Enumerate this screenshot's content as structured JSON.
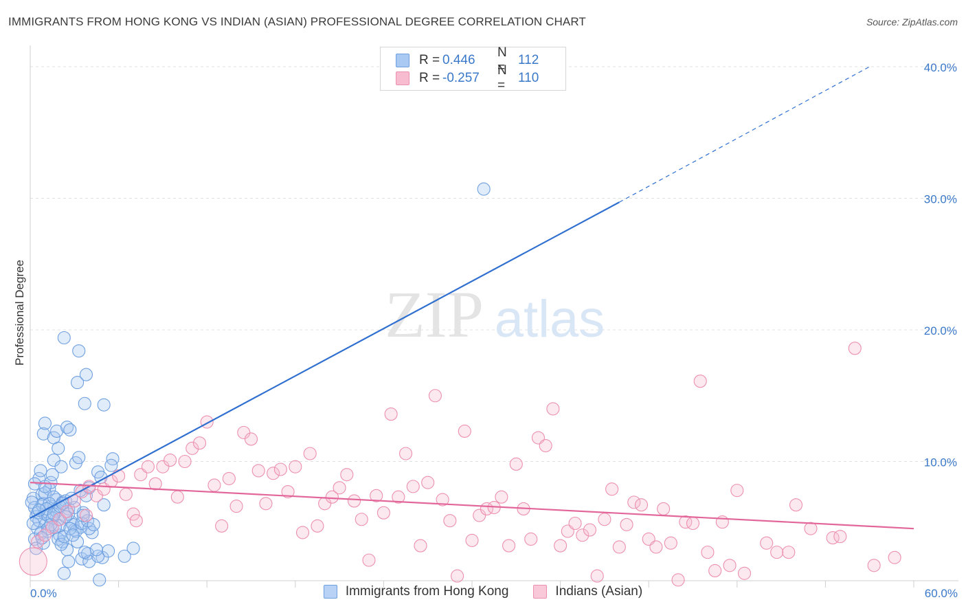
{
  "title": "IMMIGRANTS FROM HONG KONG VS INDIAN (ASIAN) PROFESSIONAL DEGREE CORRELATION CHART",
  "source": "Source: ZipAtlas.com",
  "watermark": {
    "zip": "ZIP",
    "atlas": "atlas"
  },
  "legend_top": [
    {
      "r_label": "R =",
      "r_value": "0.446",
      "n_label": "N =",
      "n_value": "112",
      "color": "#a9c8f2",
      "edge": "#6d9fe0"
    },
    {
      "r_label": "R =",
      "r_value": "-0.257",
      "n_label": "N =",
      "n_value": "110",
      "color": "#f7bcd0",
      "edge": "#ec8fb0"
    }
  ],
  "legend_bottom": [
    {
      "label": "Immigrants from Hong Kong",
      "color": "#b7d2f5",
      "edge": "#6d9fe0"
    },
    {
      "label": "Indians (Asian)",
      "color": "#f9c9d9",
      "edge": "#ec8fb0"
    }
  ],
  "chart_data": {
    "type": "scatter",
    "title": "IMMIGRANTS FROM HONG KONG VS INDIAN (ASIAN) PROFESSIONAL DEGREE CORRELATION CHART",
    "xlabel": "",
    "ylabel": "Professional Degree",
    "xlim": [
      0,
      60
    ],
    "ylim": [
      0,
      40
    ],
    "x_tick_labels": {
      "left": "0.0%",
      "right": "60.0%"
    },
    "y_ticks": [
      10,
      20,
      30,
      40
    ],
    "y_tick_labels": [
      "10.0%",
      "20.0%",
      "30.0%",
      "40.0%"
    ],
    "grid": true,
    "series": [
      {
        "name": "Immigrants from Hong Kong",
        "color": "#6d9fe0",
        "fill": "rgba(170,200,242,0.35)",
        "trend": {
          "x0": 0,
          "y0": 5.7,
          "x1": 40,
          "y1": 29.7,
          "dash_to_x": 57,
          "dash_to_y": 40.0,
          "color": "#2f6fd0"
        },
        "points": [
          [
            0.2,
            7.2
          ],
          [
            0.3,
            6.5
          ],
          [
            0.4,
            5.8
          ],
          [
            0.5,
            4.9
          ],
          [
            0.3,
            4.1
          ],
          [
            0.6,
            8.7
          ],
          [
            0.7,
            9.3
          ],
          [
            0.8,
            7.5
          ],
          [
            0.9,
            6.8
          ],
          [
            1.0,
            6.0
          ],
          [
            1.1,
            5.3
          ],
          [
            1.2,
            4.7
          ],
          [
            1.3,
            7.9
          ],
          [
            1.4,
            8.4
          ],
          [
            1.5,
            9.0
          ],
          [
            1.6,
            10.1
          ],
          [
            1.7,
            6.3
          ],
          [
            1.8,
            7.1
          ],
          [
            1.9,
            5.6
          ],
          [
            2.0,
            4.4
          ],
          [
            0.5,
            6.1
          ],
          [
            0.6,
            5.5
          ],
          [
            0.8,
            6.7
          ],
          [
            1.0,
            7.6
          ],
          [
            1.2,
            5.9
          ],
          [
            1.4,
            6.6
          ],
          [
            1.6,
            7.3
          ],
          [
            1.8,
            6.2
          ],
          [
            2.0,
            5.1
          ],
          [
            2.2,
            6.9
          ],
          [
            2.4,
            7.0
          ],
          [
            2.6,
            6.4
          ],
          [
            2.8,
            5.4
          ],
          [
            3.0,
            4.8
          ],
          [
            3.2,
            3.9
          ],
          [
            3.4,
            5.0
          ],
          [
            3.6,
            6.1
          ],
          [
            3.8,
            7.4
          ],
          [
            4.0,
            8.0
          ],
          [
            4.2,
            4.6
          ],
          [
            0.9,
            12.1
          ],
          [
            1.0,
            12.9
          ],
          [
            1.6,
            11.8
          ],
          [
            1.8,
            12.3
          ],
          [
            1.9,
            11.0
          ],
          [
            2.1,
            9.6
          ],
          [
            2.5,
            12.6
          ],
          [
            2.7,
            12.4
          ],
          [
            3.1,
            9.9
          ],
          [
            3.3,
            10.3
          ],
          [
            2.3,
            19.4
          ],
          [
            3.3,
            18.4
          ],
          [
            3.8,
            16.6
          ],
          [
            3.2,
            16.0
          ],
          [
            3.7,
            14.4
          ],
          [
            5.0,
            14.3
          ],
          [
            5.6,
            10.2
          ],
          [
            4.6,
            9.2
          ],
          [
            5.5,
            9.7
          ],
          [
            4.8,
            8.8
          ],
          [
            2.2,
            3.9
          ],
          [
            2.5,
            3.3
          ],
          [
            2.6,
            2.4
          ],
          [
            2.3,
            1.5
          ],
          [
            3.5,
            2.6
          ],
          [
            3.9,
            3.0
          ],
          [
            4.0,
            2.4
          ],
          [
            4.7,
            1.0
          ],
          [
            4.9,
            2.7
          ],
          [
            4.6,
            2.8
          ],
          [
            5.3,
            3.2
          ],
          [
            6.4,
            2.8
          ],
          [
            7.0,
            3.4
          ],
          [
            3.7,
            3.1
          ],
          [
            4.5,
            3.3
          ],
          [
            2.9,
            5.2
          ],
          [
            3.1,
            4.7
          ],
          [
            3.5,
            5.3
          ],
          [
            4.0,
            4.9
          ],
          [
            5.0,
            6.7
          ],
          [
            1.3,
            6.8
          ],
          [
            1.5,
            5.7
          ],
          [
            1.7,
            5.0
          ],
          [
            1.9,
            4.1
          ],
          [
            2.1,
            3.7
          ],
          [
            2.3,
            4.3
          ],
          [
            2.7,
            4.9
          ],
          [
            2.9,
            4.4
          ],
          [
            3.9,
            5.5
          ],
          [
            4.3,
            5.2
          ],
          [
            0.4,
            3.4
          ],
          [
            0.7,
            4.5
          ],
          [
            0.9,
            3.8
          ],
          [
            1.1,
            6.4
          ],
          [
            2.6,
            6.0
          ],
          [
            3.0,
            6.5
          ],
          [
            3.4,
            7.8
          ],
          [
            0.2,
            5.3
          ],
          [
            0.1,
            6.9
          ],
          [
            0.3,
            8.3
          ],
          [
            1.2,
            4.9
          ],
          [
            1.4,
            5.2
          ],
          [
            2.8,
            7.2
          ],
          [
            2.4,
            5.8
          ],
          [
            1.6,
            6.0
          ],
          [
            0.8,
            4.2
          ],
          [
            0.6,
            6.3
          ],
          [
            3.6,
            5.9
          ],
          [
            2.0,
            6.6
          ],
          [
            1.0,
            8.1
          ],
          [
            30.8,
            30.7
          ],
          [
            2.2,
            6.8
          ]
        ]
      },
      {
        "name": "Indians (Asian)",
        "color": "#ec8fb0",
        "fill": "rgba(247,188,208,0.35)",
        "trend": {
          "x0": 0,
          "y0": 8.4,
          "x1": 60,
          "y1": 4.9,
          "color": "#e2669a"
        },
        "points": [
          [
            0.2,
            2.4
          ],
          [
            0.5,
            3.9
          ],
          [
            1.0,
            4.4
          ],
          [
            1.5,
            5.0
          ],
          [
            2.0,
            5.6
          ],
          [
            2.5,
            6.2
          ],
          [
            3.0,
            7.0
          ],
          [
            3.5,
            7.7
          ],
          [
            4.0,
            8.1
          ],
          [
            4.5,
            7.4
          ],
          [
            5.0,
            7.9
          ],
          [
            5.5,
            8.5
          ],
          [
            6.0,
            8.9
          ],
          [
            6.5,
            7.5
          ],
          [
            7.0,
            6.0
          ],
          [
            7.5,
            9.0
          ],
          [
            8.0,
            9.6
          ],
          [
            8.5,
            8.3
          ],
          [
            9.0,
            9.6
          ],
          [
            9.5,
            10.1
          ],
          [
            10.0,
            7.3
          ],
          [
            10.5,
            10.0
          ],
          [
            11.0,
            11.0
          ],
          [
            11.5,
            11.4
          ],
          [
            12.0,
            13.0
          ],
          [
            12.5,
            8.2
          ],
          [
            13.0,
            5.1
          ],
          [
            13.5,
            8.7
          ],
          [
            14.0,
            6.6
          ],
          [
            14.5,
            12.2
          ],
          [
            15.0,
            11.7
          ],
          [
            15.5,
            9.3
          ],
          [
            16.0,
            6.8
          ],
          [
            16.5,
            9.1
          ],
          [
            17.0,
            9.4
          ],
          [
            17.5,
            7.7
          ],
          [
            18.0,
            9.6
          ],
          [
            18.5,
            4.6
          ],
          [
            19.0,
            10.6
          ],
          [
            19.5,
            5.1
          ],
          [
            20.0,
            6.8
          ],
          [
            20.5,
            7.3
          ],
          [
            21.0,
            8.0
          ],
          [
            21.5,
            9.0
          ],
          [
            22.0,
            7.0
          ],
          [
            22.5,
            5.6
          ],
          [
            23.0,
            2.5
          ],
          [
            23.5,
            7.4
          ],
          [
            24.0,
            6.1
          ],
          [
            24.5,
            13.6
          ],
          [
            25.0,
            7.3
          ],
          [
            25.5,
            10.6
          ],
          [
            26.0,
            8.1
          ],
          [
            26.5,
            3.6
          ],
          [
            27.0,
            8.4
          ],
          [
            27.5,
            15.0
          ],
          [
            28.0,
            7.1
          ],
          [
            28.5,
            5.5
          ],
          [
            29.0,
            1.3
          ],
          [
            29.5,
            12.3
          ],
          [
            30.0,
            4.0
          ],
          [
            30.5,
            5.9
          ],
          [
            31.0,
            6.4
          ],
          [
            31.5,
            6.5
          ],
          [
            32.0,
            7.3
          ],
          [
            32.5,
            3.6
          ],
          [
            33.0,
            9.8
          ],
          [
            33.5,
            6.4
          ],
          [
            34.0,
            4.1
          ],
          [
            34.5,
            11.8
          ],
          [
            35.0,
            11.2
          ],
          [
            35.5,
            14.0
          ],
          [
            36.0,
            3.6
          ],
          [
            36.5,
            4.7
          ],
          [
            37.0,
            5.3
          ],
          [
            37.5,
            4.4
          ],
          [
            38.0,
            4.8
          ],
          [
            38.5,
            1.3
          ],
          [
            39.0,
            5.6
          ],
          [
            39.5,
            7.9
          ],
          [
            40.0,
            3.5
          ],
          [
            40.5,
            5.2
          ],
          [
            41.0,
            6.9
          ],
          [
            41.5,
            6.7
          ],
          [
            42.0,
            4.1
          ],
          [
            42.5,
            3.5
          ],
          [
            43.0,
            6.4
          ],
          [
            43.5,
            3.8
          ],
          [
            44.0,
            1.0
          ],
          [
            44.5,
            5.4
          ],
          [
            45.0,
            5.3
          ],
          [
            45.5,
            16.1
          ],
          [
            46.0,
            3.1
          ],
          [
            46.5,
            1.7
          ],
          [
            47.0,
            5.4
          ],
          [
            47.5,
            2.1
          ],
          [
            48.0,
            7.8
          ],
          [
            48.5,
            1.5
          ],
          [
            50.0,
            3.8
          ],
          [
            50.7,
            3.1
          ],
          [
            51.5,
            3.1
          ],
          [
            52.0,
            6.7
          ],
          [
            53.0,
            4.9
          ],
          [
            54.5,
            4.2
          ],
          [
            55.0,
            4.3
          ],
          [
            56.0,
            18.6
          ],
          [
            57.3,
            2.1
          ],
          [
            58.7,
            2.7
          ],
          [
            7.2,
            5.5
          ],
          [
            3.8,
            5.9
          ]
        ]
      }
    ]
  }
}
